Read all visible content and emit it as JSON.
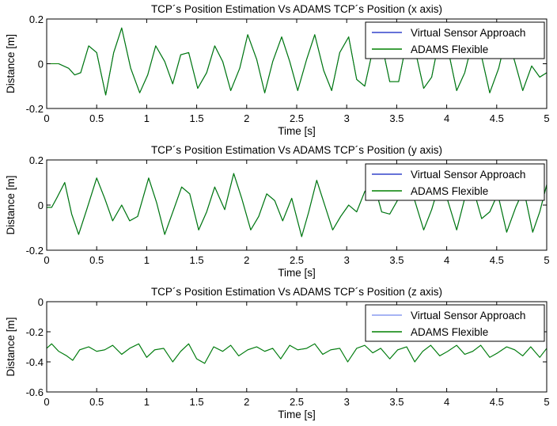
{
  "chart_data": [
    {
      "type": "line",
      "title": "TCP´s Position Estimation Vs ADAMS TCP´s Position (x axis)",
      "xlabel": "Time [s]",
      "ylabel": "Distance [m]",
      "xlim": [
        0,
        5
      ],
      "ylim": [
        -0.2,
        0.2
      ],
      "xticks": [
        0,
        0.5,
        1,
        1.5,
        2,
        2.5,
        3,
        3.5,
        4,
        4.5,
        5
      ],
      "xtick_labels": [
        "0",
        "0.5",
        "1",
        "1.5",
        "2",
        "2.5",
        "3",
        "3.5",
        "4",
        "4.5",
        "5"
      ],
      "yticks": [
        -0.2,
        0,
        0.2
      ],
      "ytick_labels": [
        "-0.2",
        "0",
        "0.2"
      ],
      "legend_position": "top-right",
      "grid": false,
      "x": [
        0,
        0.12,
        0.22,
        0.28,
        0.34,
        0.42,
        0.5,
        0.59,
        0.67,
        0.75,
        0.84,
        0.93,
        1.01,
        1.09,
        1.18,
        1.26,
        1.34,
        1.42,
        1.51,
        1.6,
        1.68,
        1.76,
        1.84,
        1.93,
        2.01,
        2.1,
        2.18,
        2.26,
        2.35,
        2.43,
        2.51,
        2.6,
        2.68,
        2.77,
        2.85,
        2.93,
        3.02,
        3.1,
        3.18,
        3.27,
        3.35,
        3.43,
        3.52,
        3.6,
        3.68,
        3.77,
        3.85,
        3.93,
        4.02,
        4.1,
        4.18,
        4.27,
        4.35,
        4.43,
        4.52,
        4.6,
        4.68,
        4.76,
        4.85,
        4.93,
        5
      ],
      "series": [
        {
          "name": "Virtual Sensor Approach",
          "color": "#3344cc",
          "values": [
            0,
            0,
            -0.02,
            -0.05,
            -0.04,
            0.08,
            0.05,
            -0.14,
            0.05,
            0.16,
            -0.02,
            -0.13,
            -0.05,
            0.08,
            0.01,
            -0.09,
            0.04,
            0.05,
            -0.11,
            -0.04,
            0.08,
            0.01,
            -0.12,
            -0.02,
            0.13,
            0.02,
            -0.13,
            0.01,
            0.12,
            0.01,
            -0.12,
            0.02,
            0.13,
            -0.03,
            -0.12,
            0.05,
            0.12,
            -0.07,
            -0.1,
            0.08,
            0.09,
            -0.08,
            -0.08,
            0.1,
            0.07,
            -0.11,
            -0.06,
            0.12,
            0.05,
            -0.12,
            -0.04,
            0.12,
            0.03,
            -0.13,
            -0.02,
            0.13,
            0.01,
            -0.12,
            -0.01,
            -0.06,
            -0.04
          ]
        },
        {
          "name": "ADAMS Flexible",
          "color": "#008000",
          "values": [
            0,
            0,
            -0.02,
            -0.05,
            -0.04,
            0.08,
            0.05,
            -0.14,
            0.05,
            0.16,
            -0.02,
            -0.13,
            -0.05,
            0.08,
            0.01,
            -0.09,
            0.04,
            0.05,
            -0.11,
            -0.04,
            0.08,
            0.01,
            -0.12,
            -0.02,
            0.13,
            0.02,
            -0.13,
            0.01,
            0.12,
            0.01,
            -0.12,
            0.02,
            0.13,
            -0.03,
            -0.12,
            0.05,
            0.12,
            -0.07,
            -0.1,
            0.08,
            0.09,
            -0.08,
            -0.08,
            0.1,
            0.07,
            -0.11,
            -0.06,
            0.12,
            0.05,
            -0.12,
            -0.04,
            0.12,
            0.03,
            -0.13,
            -0.02,
            0.13,
            0.01,
            -0.12,
            -0.01,
            -0.06,
            -0.04
          ]
        }
      ]
    },
    {
      "type": "line",
      "title": "TCP´s Position Estimation Vs ADAMS TCP´s Position (y axis)",
      "xlabel": "Time [s]",
      "ylabel": "Distance [m]",
      "xlim": [
        0,
        5
      ],
      "ylim": [
        -0.2,
        0.2
      ],
      "xticks": [
        0,
        0.5,
        1,
        1.5,
        2,
        2.5,
        3,
        3.5,
        4,
        4.5,
        5
      ],
      "xtick_labels": [
        "0",
        "0.5",
        "1",
        "1.5",
        "2",
        "2.5",
        "3",
        "3.5",
        "4",
        "4.5",
        "5"
      ],
      "yticks": [
        -0.2,
        0,
        0.2
      ],
      "ytick_labels": [
        "-0.2",
        "0",
        "0.2"
      ],
      "legend_position": "top-right",
      "grid": false,
      "x": [
        0,
        0.05,
        0.1,
        0.18,
        0.25,
        0.32,
        0.4,
        0.5,
        0.58,
        0.66,
        0.75,
        0.83,
        0.91,
        1.02,
        1.1,
        1.18,
        1.27,
        1.35,
        1.43,
        1.52,
        1.6,
        1.68,
        1.78,
        1.87,
        1.95,
        2.04,
        2.12,
        2.2,
        2.28,
        2.36,
        2.45,
        2.55,
        2.62,
        2.7,
        2.78,
        2.86,
        2.94,
        3.02,
        3.1,
        3.18,
        3.27,
        3.35,
        3.43,
        3.52,
        3.6,
        3.68,
        3.77,
        3.85,
        3.93,
        4.01,
        4.1,
        4.18,
        4.26,
        4.35,
        4.43,
        4.51,
        4.6,
        4.69,
        4.77,
        4.86,
        4.93,
        5
      ],
      "series": [
        {
          "name": "Virtual Sensor Approach",
          "color": "#3344cc",
          "values": [
            -0.01,
            -0.01,
            0.03,
            0.1,
            -0.04,
            -0.13,
            -0.02,
            0.12,
            0.03,
            -0.07,
            0.0,
            -0.07,
            -0.05,
            0.12,
            0.01,
            -0.13,
            -0.02,
            0.08,
            0.05,
            -0.11,
            -0.03,
            0.08,
            -0.02,
            0.14,
            0.03,
            -0.11,
            -0.05,
            0.05,
            0.02,
            -0.07,
            0.03,
            -0.14,
            -0.03,
            0.11,
            0.0,
            -0.11,
            -0.05,
            0.0,
            -0.03,
            0.06,
            0.1,
            -0.03,
            -0.04,
            0.03,
            0.06,
            0.02,
            -0.11,
            -0.02,
            0.1,
            0.02,
            -0.11,
            0.03,
            0.08,
            -0.06,
            -0.03,
            0.05,
            -0.12,
            -0.01,
            0.07,
            -0.12,
            -0.03,
            0.09
          ]
        },
        {
          "name": "ADAMS Flexible",
          "color": "#008000",
          "values": [
            -0.01,
            -0.01,
            0.03,
            0.1,
            -0.04,
            -0.13,
            -0.02,
            0.12,
            0.03,
            -0.07,
            0.0,
            -0.07,
            -0.05,
            0.12,
            0.01,
            -0.13,
            -0.02,
            0.08,
            0.05,
            -0.11,
            -0.03,
            0.08,
            -0.02,
            0.14,
            0.03,
            -0.11,
            -0.05,
            0.05,
            0.02,
            -0.07,
            0.03,
            -0.14,
            -0.03,
            0.11,
            0.0,
            -0.11,
            -0.05,
            0.0,
            -0.03,
            0.06,
            0.1,
            -0.03,
            -0.04,
            0.03,
            0.06,
            0.02,
            -0.11,
            -0.02,
            0.1,
            0.02,
            -0.11,
            0.03,
            0.08,
            -0.06,
            -0.03,
            0.05,
            -0.12,
            -0.01,
            0.07,
            -0.12,
            -0.03,
            0.09
          ]
        }
      ]
    },
    {
      "type": "line",
      "title": "TCP´s Position Estimation Vs ADAMS TCP´s Position (z axis)",
      "xlabel": "Time [s]",
      "ylabel": "Distance [m]",
      "xlim": [
        0,
        5
      ],
      "ylim": [
        -0.6,
        0
      ],
      "xticks": [
        0,
        0.5,
        1,
        1.5,
        2,
        2.5,
        3,
        3.5,
        4,
        4.5,
        5
      ],
      "xtick_labels": [
        "0",
        "0.5",
        "1",
        "1.5",
        "2",
        "2.5",
        "3",
        "3.5",
        "4",
        "4.5",
        "5"
      ],
      "yticks": [
        -0.6,
        -0.4,
        -0.2,
        0
      ],
      "ytick_labels": [
        "-0.6",
        "-0.4",
        "-0.2",
        "0"
      ],
      "legend_position": "top-right",
      "grid": false,
      "x": [
        0,
        0.05,
        0.12,
        0.2,
        0.26,
        0.33,
        0.42,
        0.5,
        0.58,
        0.66,
        0.75,
        0.83,
        0.92,
        1.0,
        1.08,
        1.17,
        1.26,
        1.34,
        1.42,
        1.5,
        1.58,
        1.67,
        1.76,
        1.84,
        1.92,
        2.01,
        2.1,
        2.18,
        2.26,
        2.34,
        2.43,
        2.51,
        2.6,
        2.68,
        2.76,
        2.84,
        2.93,
        3.01,
        3.1,
        3.18,
        3.26,
        3.34,
        3.43,
        3.51,
        3.6,
        3.68,
        3.76,
        3.84,
        3.93,
        4.01,
        4.1,
        4.18,
        4.26,
        4.34,
        4.43,
        4.51,
        4.6,
        4.68,
        4.76,
        4.84,
        4.93,
        5
      ],
      "series": [
        {
          "name": "Virtual Sensor Approach",
          "color": "#8a9cf0",
          "values": [
            -0.31,
            -0.28,
            -0.33,
            -0.36,
            -0.39,
            -0.32,
            -0.3,
            -0.33,
            -0.32,
            -0.29,
            -0.35,
            -0.31,
            -0.28,
            -0.37,
            -0.32,
            -0.31,
            -0.4,
            -0.33,
            -0.28,
            -0.38,
            -0.41,
            -0.3,
            -0.33,
            -0.29,
            -0.36,
            -0.32,
            -0.3,
            -0.33,
            -0.31,
            -0.38,
            -0.29,
            -0.32,
            -0.31,
            -0.28,
            -0.35,
            -0.32,
            -0.31,
            -0.4,
            -0.31,
            -0.29,
            -0.34,
            -0.31,
            -0.38,
            -0.32,
            -0.3,
            -0.4,
            -0.33,
            -0.29,
            -0.36,
            -0.33,
            -0.29,
            -0.35,
            -0.33,
            -0.29,
            -0.37,
            -0.34,
            -0.3,
            -0.32,
            -0.36,
            -0.3,
            -0.37,
            -0.31
          ]
        },
        {
          "name": "ADAMS Flexible",
          "color": "#008000",
          "values": [
            -0.31,
            -0.28,
            -0.33,
            -0.36,
            -0.39,
            -0.32,
            -0.3,
            -0.33,
            -0.32,
            -0.29,
            -0.35,
            -0.31,
            -0.28,
            -0.37,
            -0.32,
            -0.31,
            -0.4,
            -0.33,
            -0.28,
            -0.38,
            -0.41,
            -0.3,
            -0.33,
            -0.29,
            -0.36,
            -0.32,
            -0.3,
            -0.33,
            -0.31,
            -0.38,
            -0.29,
            -0.32,
            -0.31,
            -0.28,
            -0.35,
            -0.32,
            -0.31,
            -0.4,
            -0.31,
            -0.29,
            -0.34,
            -0.31,
            -0.38,
            -0.32,
            -0.3,
            -0.4,
            -0.33,
            -0.29,
            -0.36,
            -0.33,
            -0.29,
            -0.35,
            -0.33,
            -0.29,
            -0.37,
            -0.34,
            -0.3,
            -0.32,
            -0.36,
            -0.3,
            -0.37,
            -0.31
          ]
        }
      ]
    }
  ]
}
